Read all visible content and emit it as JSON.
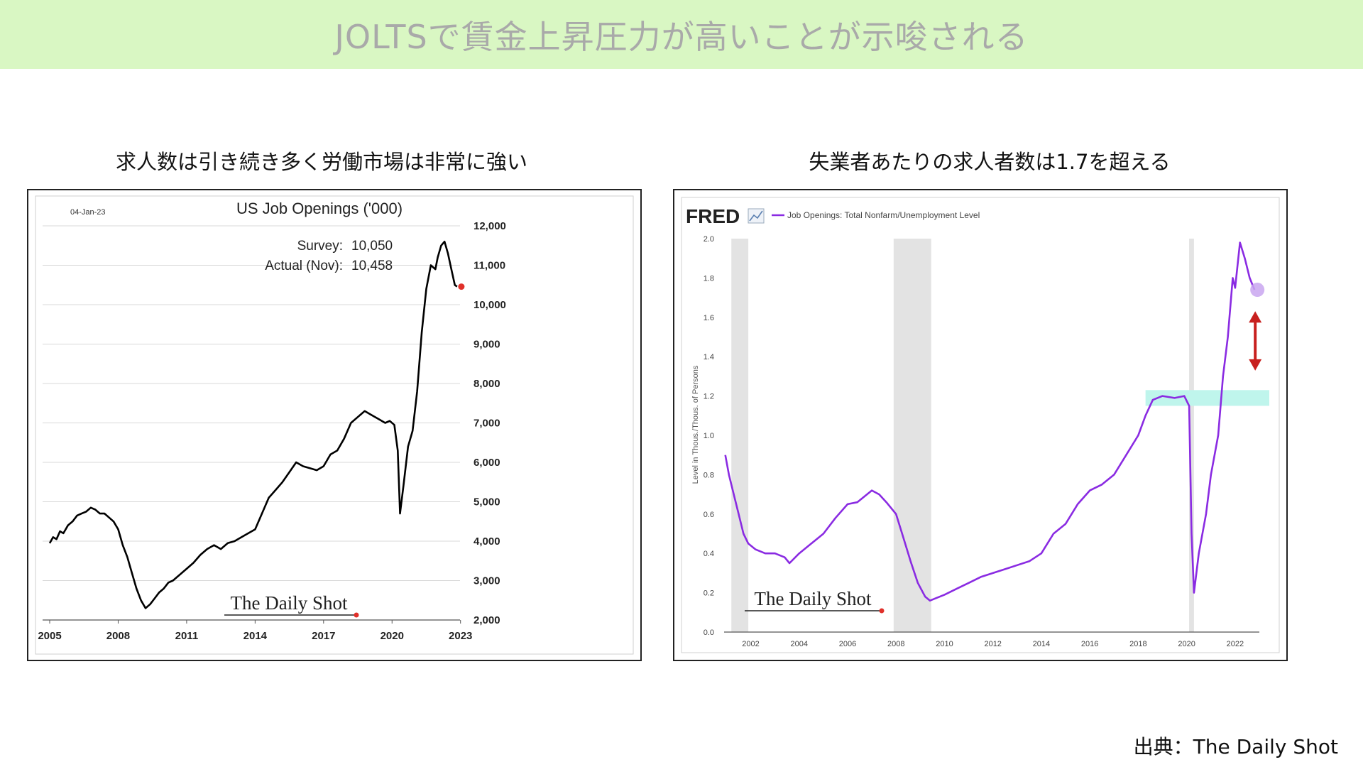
{
  "page": {
    "title": "JOLTSで賃金上昇圧力が高いことが示唆される",
    "source": "出典：The Daily Shot"
  },
  "left": {
    "caption": "求人数は引き続き多く労働市場は非常に強い",
    "date_label": "04-Jan-23",
    "chart_title": "US Job Openings ('000)",
    "survey_label": "Survey:",
    "survey_value": "10,050",
    "actual_label": "Actual (Nov):",
    "actual_value": "10,458",
    "watermark": "The Daily Shot",
    "colors": {
      "line": "#000000",
      "marker": "#e0302a",
      "grid": "#d8d8d8"
    }
  },
  "right": {
    "caption": "失業者あたりの求人者数は1.7を超える",
    "brand": "FRED",
    "legend": "Job Openings: Total Nonfarm/Unemployment Level",
    "ylabel": "Level in Thous./Thous. of Persons",
    "watermark": "The Daily Shot",
    "colors": {
      "line": "#8a2be2",
      "recession": "#e3e3e3",
      "band": "#bff5ec",
      "arrow": "#c8201e",
      "marker": "#c9a6f0"
    }
  },
  "chart_data": [
    {
      "type": "line",
      "title": "US Job Openings ('000)",
      "x_ticks": [
        "2005",
        "2008",
        "2011",
        "2014",
        "2017",
        "2020",
        "2023"
      ],
      "y_ticks": [
        "2,000",
        "3,000",
        "4,000",
        "5,000",
        "6,000",
        "7,000",
        "8,000",
        "9,000",
        "10,000",
        "11,000",
        "12,000"
      ],
      "xlim": [
        2005,
        2023.6
      ],
      "ylim": [
        2000,
        12000
      ],
      "grid": true,
      "annotations": [
        {
          "label": "Survey:",
          "value": "10,050"
        },
        {
          "label": "Actual (Nov):",
          "value": "10,458"
        }
      ],
      "series": [
        {
          "x": [
            2005.0,
            2005.15,
            2005.3,
            2005.45,
            2005.6,
            2005.8,
            2006.0,
            2006.2,
            2006.4,
            2006.6,
            2006.8,
            2007.0,
            2007.2,
            2007.4,
            2007.6,
            2007.8,
            2008.0,
            2008.2,
            2008.4,
            2008.6,
            2008.8,
            2009.0,
            2009.2,
            2009.4,
            2009.6,
            2009.8,
            2010.0,
            2010.2,
            2010.4,
            2010.6,
            2010.8,
            2011.0,
            2011.3,
            2011.6,
            2011.9,
            2012.2,
            2012.5,
            2012.8,
            2013.1,
            2013.4,
            2013.7,
            2014.0,
            2014.3,
            2014.6,
            2014.9,
            2015.2,
            2015.5,
            2015.8,
            2016.1,
            2016.4,
            2016.7,
            2017.0,
            2017.3,
            2017.6,
            2017.9,
            2018.2,
            2018.5,
            2018.8,
            2019.1,
            2019.4,
            2019.7,
            2019.9,
            2020.1,
            2020.25,
            2020.35,
            2020.5,
            2020.7,
            2020.9,
            2021.1,
            2021.3,
            2021.5,
            2021.7,
            2021.9,
            2022.0,
            2022.15,
            2022.3,
            2022.45,
            2022.6,
            2022.75,
            2022.85
          ],
          "y": [
            3950,
            4100,
            4050,
            4250,
            4200,
            4400,
            4500,
            4650,
            4700,
            4750,
            4850,
            4800,
            4700,
            4700,
            4600,
            4500,
            4300,
            3900,
            3600,
            3200,
            2800,
            2500,
            2300,
            2400,
            2550,
            2700,
            2800,
            2950,
            3000,
            3100,
            3200,
            3300,
            3450,
            3650,
            3800,
            3900,
            3800,
            3950,
            4000,
            4100,
            4200,
            4300,
            4700,
            5100,
            5300,
            5500,
            5750,
            6000,
            5900,
            5850,
            5800,
            5900,
            6200,
            6300,
            6600,
            7000,
            7150,
            7300,
            7200,
            7100,
            7000,
            7050,
            6950,
            6300,
            4700,
            5400,
            6400,
            6800,
            7800,
            9300,
            10400,
            11000,
            10900,
            11200,
            11500,
            11600,
            11300,
            10900,
            10500,
            10458
          ]
        }
      ]
    },
    {
      "type": "line",
      "title": "",
      "ylabel": "Level in Thous./Thous. of Persons",
      "x_ticks": [
        "2002",
        "2004",
        "2006",
        "2008",
        "2010",
        "2012",
        "2014",
        "2016",
        "2018",
        "2020",
        "2022"
      ],
      "y_ticks": [
        "0.0",
        "0.2",
        "0.4",
        "0.6",
        "0.8",
        "1.0",
        "1.2",
        "1.4",
        "1.6",
        "1.8",
        "2.0"
      ],
      "xlim": [
        2000.9,
        2023.0
      ],
      "ylim": [
        0,
        2.0
      ],
      "grid": false,
      "recessions": [
        [
          2001.2,
          2001.9
        ],
        [
          2007.9,
          2009.45
        ],
        [
          2020.1,
          2020.3
        ]
      ],
      "series": [
        {
          "name": "Job Openings: Total Nonfarm/Unemployment Level",
          "x": [
            2000.95,
            2001.1,
            2001.3,
            2001.5,
            2001.7,
            2001.9,
            2002.2,
            2002.6,
            2003.0,
            2003.4,
            2003.6,
            2004.0,
            2004.5,
            2005.0,
            2005.5,
            2006.0,
            2006.4,
            2006.8,
            2007.0,
            2007.3,
            2007.6,
            2008.0,
            2008.3,
            2008.6,
            2008.9,
            2009.2,
            2009.4,
            2009.6,
            2010.0,
            2010.5,
            2011.0,
            2011.5,
            2012.0,
            2012.5,
            2013.0,
            2013.5,
            2014.0,
            2014.5,
            2015.0,
            2015.5,
            2016.0,
            2016.5,
            2017.0,
            2017.5,
            2018.0,
            2018.3,
            2018.6,
            2019.0,
            2019.5,
            2019.9,
            2020.1,
            2020.2,
            2020.3,
            2020.5,
            2020.8,
            2021.0,
            2021.3,
            2021.5,
            2021.7,
            2021.9,
            2022.0,
            2022.2,
            2022.4,
            2022.6,
            2022.8
          ],
          "y": [
            0.9,
            0.8,
            0.7,
            0.6,
            0.5,
            0.45,
            0.42,
            0.4,
            0.4,
            0.38,
            0.35,
            0.4,
            0.45,
            0.5,
            0.58,
            0.65,
            0.66,
            0.7,
            0.72,
            0.7,
            0.66,
            0.6,
            0.48,
            0.36,
            0.25,
            0.18,
            0.16,
            0.17,
            0.19,
            0.22,
            0.25,
            0.28,
            0.3,
            0.32,
            0.34,
            0.36,
            0.4,
            0.5,
            0.55,
            0.65,
            0.72,
            0.75,
            0.8,
            0.9,
            1.0,
            1.1,
            1.18,
            1.2,
            1.19,
            1.2,
            1.15,
            0.5,
            0.2,
            0.4,
            0.6,
            0.8,
            1.0,
            1.3,
            1.5,
            1.8,
            1.75,
            1.98,
            1.9,
            1.8,
            1.74
          ]
        }
      ]
    }
  ]
}
